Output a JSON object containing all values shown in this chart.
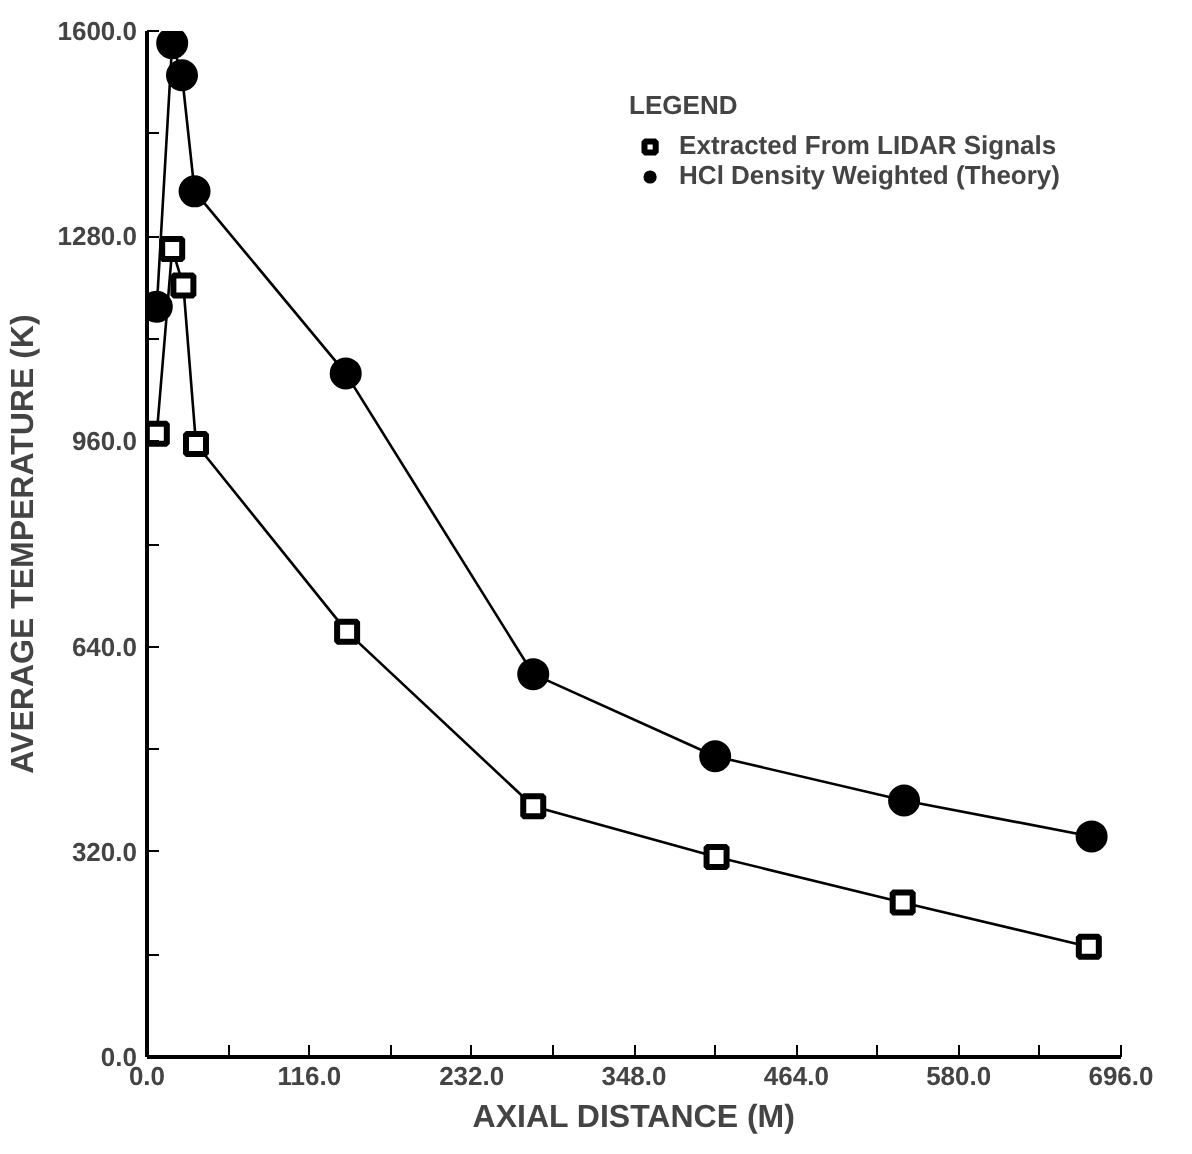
{
  "chart_data": {
    "type": "line",
    "xlabel": "AXIAL DISTANCE (M)",
    "ylabel": "AVERAGE TEMPERATURE (K)",
    "legend_title": "LEGEND",
    "legend": "top right",
    "grid": false,
    "xlim": [
      0,
      696
    ],
    "ylim": [
      0,
      1600
    ],
    "xticks": [
      {
        "value": 0,
        "label": "0.0"
      },
      {
        "value": 58,
        "label": null
      },
      {
        "value": 116,
        "label": "116.0"
      },
      {
        "value": 174,
        "label": null
      },
      {
        "value": 232,
        "label": "232.0"
      },
      {
        "value": 290,
        "label": null
      },
      {
        "value": 348,
        "label": "348.0"
      },
      {
        "value": 406,
        "label": null
      },
      {
        "value": 464,
        "label": "464.0"
      },
      {
        "value": 522,
        "label": null
      },
      {
        "value": 580,
        "label": "580.0"
      },
      {
        "value": 638,
        "label": null
      },
      {
        "value": 696,
        "label": "696.0"
      }
    ],
    "yticks": [
      {
        "value": 0,
        "label": "0.0"
      },
      {
        "value": 160,
        "label": null
      },
      {
        "value": 320,
        "label": "320.0"
      },
      {
        "value": 480,
        "label": null
      },
      {
        "value": 640,
        "label": "640.0"
      },
      {
        "value": 800,
        "label": null
      },
      {
        "value": 960,
        "label": "960.0"
      },
      {
        "value": 1120,
        "label": null
      },
      {
        "value": 1280,
        "label": "1280.0"
      },
      {
        "value": 1440,
        "label": null
      },
      {
        "value": 1600,
        "label": "1600.0"
      }
    ],
    "series": [
      {
        "name": "Extracted From LIDAR Signals",
        "color": "#000000",
        "marker": "square",
        "x": [
          7,
          18,
          26,
          35,
          143,
          276,
          407,
          540,
          673
        ],
        "values": [
          972,
          1260,
          1203,
          956,
          663,
          391,
          312,
          241,
          172
        ]
      },
      {
        "name": "HCl Density Weighted (Theory)",
        "color": "#000000",
        "marker": "circle",
        "x": [
          7,
          18,
          25,
          34,
          142,
          276,
          406,
          541,
          675
        ],
        "values": [
          1170,
          1581,
          1531,
          1350,
          1066,
          597,
          469,
          400,
          344
        ]
      }
    ]
  }
}
